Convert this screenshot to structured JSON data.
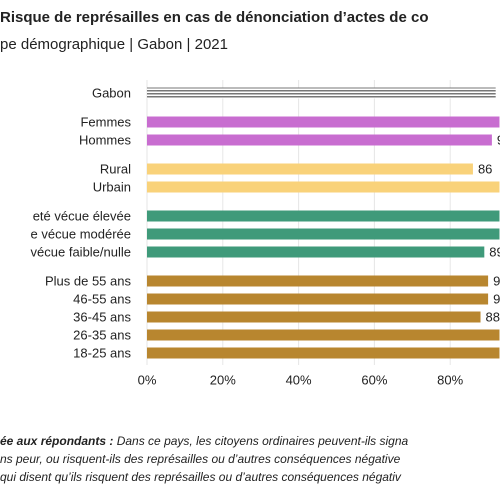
{
  "chart_data": {
    "type": "barh",
    "title": "Risque de représailles en cas de dénonciation d’actes de co",
    "subtitle": "pe démographique | Gabon | 2021",
    "categories": [
      "Gabon",
      "Femmes",
      "Hommes",
      "Rural",
      "Urbain",
      "eté vécue élevée",
      "e vécue modérée",
      "vécue faible/nulle",
      "Plus de 55 ans",
      "46-55 ans",
      "36-45 ans",
      "26-35 ans",
      "18-25 ans"
    ],
    "values": [
      92,
      93,
      91,
      86,
      93,
      93,
      93,
      89,
      90,
      90,
      88,
      93,
      93
    ],
    "colors": [
      "#777777",
      "#c86dd0",
      "#c86dd0",
      "#f9d27a",
      "#f9d27a",
      "#3f9a7a",
      "#3f9a7a",
      "#3f9a7a",
      "#b8862f",
      "#b8862f",
      "#b8862f",
      "#b8862f",
      "#b8862f"
    ],
    "patterns": [
      "hatch",
      null,
      null,
      null,
      null,
      null,
      null,
      null,
      null,
      null,
      null,
      null,
      null
    ],
    "xlim": [
      0,
      100
    ],
    "xticks": [
      {
        "value": 0,
        "label": "0%"
      },
      {
        "value": 20,
        "label": "20%"
      },
      {
        "value": 40,
        "label": "40%"
      },
      {
        "value": 60,
        "label": "60%"
      },
      {
        "value": 80,
        "label": "80%"
      }
    ],
    "grid": true,
    "footnote_lead": "ée aux répondants :",
    "footnote": [
      " Dans ce pays, les citoyens ordinaires peuvent-ils signa",
      "ns peur, ou risquent-ils des représailles ou d’autres conséquences négative",
      "qui disent qu’ils risquent des représailles ou d’autres conséquences négativ"
    ]
  }
}
